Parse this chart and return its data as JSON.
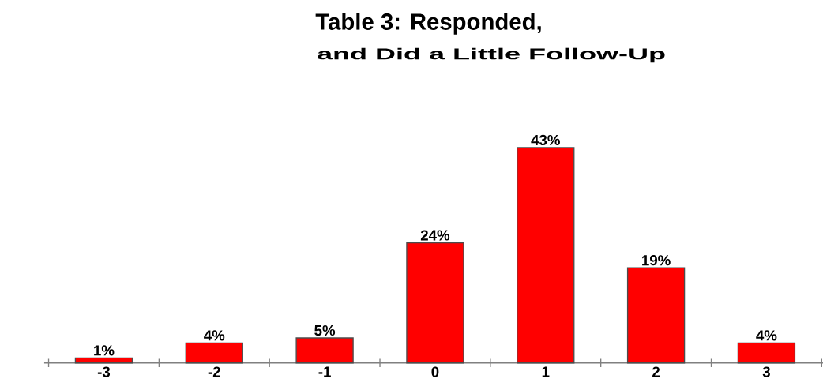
{
  "chart_data": {
    "type": "bar",
    "title": "Table 3: Responded,",
    "subtitle": "and Did a Little Follow-Up",
    "categories": [
      "-3",
      "-2",
      "-1",
      "0",
      "1",
      "2",
      "3"
    ],
    "values": [
      1,
      4,
      5,
      24,
      43,
      19,
      4
    ],
    "value_labels": [
      "1%",
      "4%",
      "5%",
      "24%",
      "43%",
      "19%",
      "4%"
    ],
    "color": "#ff0000"
  }
}
